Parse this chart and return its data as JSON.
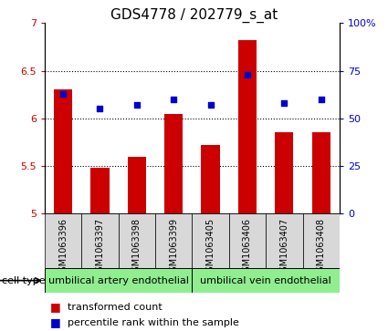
{
  "title": "GDS4778 / 202779_s_at",
  "samples": [
    "GSM1063396",
    "GSM1063397",
    "GSM1063398",
    "GSM1063399",
    "GSM1063405",
    "GSM1063406",
    "GSM1063407",
    "GSM1063408"
  ],
  "transformed_count": [
    6.3,
    5.48,
    5.6,
    6.05,
    5.72,
    6.82,
    5.85,
    5.85
  ],
  "percentile_rank": [
    63,
    55,
    57,
    60,
    57,
    73,
    58,
    60
  ],
  "cell_types": [
    {
      "label": "umbilical artery endothelial",
      "start": 0,
      "end": 4,
      "color": "#90EE90"
    },
    {
      "label": "umbilical vein endothelial",
      "start": 4,
      "end": 8,
      "color": "#90EE90"
    }
  ],
  "ylim_left": [
    5,
    7
  ],
  "ylim_right": [
    0,
    100
  ],
  "yticks_left": [
    5,
    5.5,
    6,
    6.5,
    7
  ],
  "ytick_labels_left": [
    "5",
    "5.5",
    "6",
    "6.5",
    "7"
  ],
  "yticks_right": [
    0,
    25,
    50,
    75,
    100
  ],
  "ytick_labels_right": [
    "0",
    "25",
    "50",
    "75",
    "100%"
  ],
  "bar_color": "#CC0000",
  "scatter_color": "#0000CC",
  "bar_width": 0.5,
  "bg_color": "#d8d8d8",
  "legend_bar_label": "transformed count",
  "legend_scatter_label": "percentile rank within the sample",
  "cell_type_label": "cell type",
  "title_fontsize": 11,
  "tick_fontsize": 8,
  "sample_fontsize": 7,
  "celltype_fontsize": 8,
  "legend_fontsize": 8
}
